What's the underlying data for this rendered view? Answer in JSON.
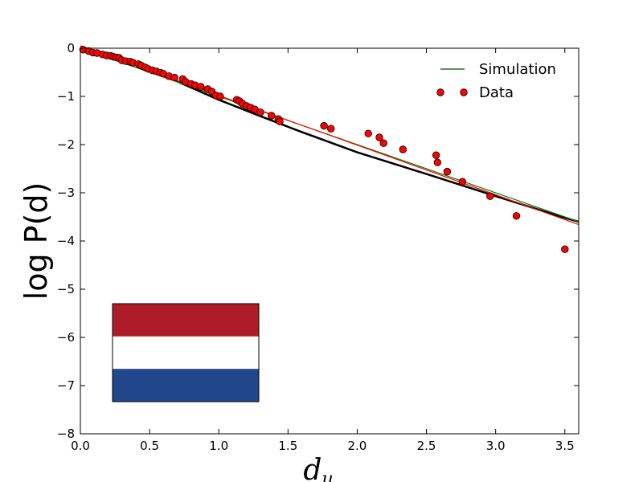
{
  "chart_data": {
    "type": "scatter",
    "title": "",
    "xlabel": "d",
    "xlabel_subscript": "u",
    "ylabel": "log P(d)",
    "xlim": [
      0,
      3.6
    ],
    "ylim": [
      -8,
      0
    ],
    "xticks": [
      0.0,
      0.5,
      1.0,
      1.5,
      2.0,
      2.5,
      3.0,
      3.5
    ],
    "xtick_labels": [
      "0.0",
      "0.5",
      "1.0",
      "1.5",
      "2.0",
      "2.5",
      "3.0",
      "3.5"
    ],
    "yticks": [
      0,
      -1,
      -2,
      -3,
      -4,
      -5,
      -6,
      -7,
      -8
    ],
    "ytick_labels": [
      "0",
      "−1",
      "−2",
      "−3",
      "−4",
      "−5",
      "−6",
      "−7",
      "−8"
    ],
    "grid": false,
    "legend": {
      "location": "top-right",
      "entries": [
        "Simulation",
        "Data"
      ]
    },
    "series": [
      {
        "name": "Simulation",
        "style": "line",
        "color": "#000000",
        "marker_color": "#008000",
        "x": [
          0.0,
          0.1,
          0.2,
          0.3,
          0.5,
          0.7,
          1.0,
          1.3,
          1.6,
          2.0,
          2.5,
          3.0,
          3.5,
          3.6
        ],
        "y": [
          0.0,
          -0.06,
          -0.14,
          -0.24,
          -0.46,
          -0.69,
          -1.07,
          -1.41,
          -1.74,
          -2.16,
          -2.61,
          -3.07,
          -3.52,
          -3.6
        ]
      },
      {
        "name": "Data",
        "style": "scatter",
        "color": "#ff0000",
        "x": [
          0.02,
          0.06,
          0.09,
          0.12,
          0.16,
          0.19,
          0.22,
          0.24,
          0.26,
          0.28,
          0.3,
          0.33,
          0.36,
          0.38,
          0.42,
          0.44,
          0.47,
          0.49,
          0.52,
          0.55,
          0.58,
          0.6,
          0.64,
          0.68,
          0.74,
          0.76,
          0.8,
          0.83,
          0.87,
          0.92,
          0.95,
          0.98,
          1.01,
          1.13,
          1.15,
          1.17,
          1.2,
          1.23,
          1.26,
          1.3,
          1.38,
          1.43,
          1.44,
          1.76,
          1.81,
          2.08,
          2.16,
          2.19,
          2.33,
          2.57,
          2.58,
          2.65,
          2.76,
          2.96,
          3.15,
          3.5
        ],
        "y": [
          -0.03,
          -0.06,
          -0.09,
          -0.1,
          -0.13,
          -0.15,
          -0.16,
          -0.18,
          -0.19,
          -0.2,
          -0.25,
          -0.27,
          -0.28,
          -0.3,
          -0.33,
          -0.36,
          -0.4,
          -0.43,
          -0.46,
          -0.48,
          -0.51,
          -0.53,
          -0.58,
          -0.61,
          -0.64,
          -0.7,
          -0.74,
          -0.77,
          -0.8,
          -0.85,
          -0.9,
          -0.98,
          -1.0,
          -1.07,
          -1.1,
          -1.15,
          -1.2,
          -1.23,
          -1.27,
          -1.33,
          -1.4,
          -1.47,
          -1.52,
          -1.61,
          -1.67,
          -1.77,
          -1.85,
          -1.97,
          -2.1,
          -2.22,
          -2.37,
          -2.56,
          -2.77,
          -3.07,
          -3.48,
          -4.17
        ]
      },
      {
        "name": "",
        "style": "fit-line",
        "color": "#008000",
        "x": [
          0.0,
          3.6
        ],
        "y": [
          0.0,
          -3.6
        ]
      },
      {
        "name": "",
        "style": "fit-line",
        "color": "#ff0000",
        "x": [
          0.0,
          3.6
        ],
        "y": [
          0.05,
          -3.66
        ]
      }
    ],
    "inset_flag": {
      "description": "flag",
      "colors": [
        "#ae1c28",
        "#ffffff",
        "#21468b"
      ]
    }
  }
}
